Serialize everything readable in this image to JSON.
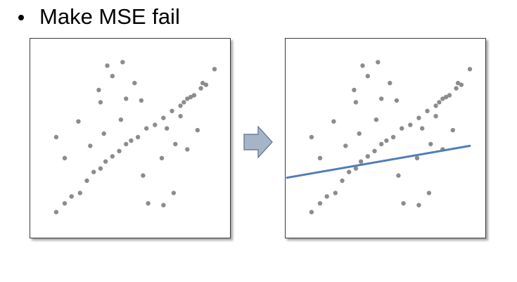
{
  "bullet": {
    "text": "Make MSE fail"
  },
  "colors": {
    "point": "#8c8c8c",
    "fit_line": "#4f7db8",
    "arrow_fill": "#a6b4c8",
    "arrow_stroke": "#5a6f8c",
    "frame": "#3a3a3a"
  },
  "icons": {
    "transition": "right-arrow-icon"
  },
  "chart_data": [
    {
      "type": "scatter",
      "title": "",
      "xlabel": "",
      "ylabel": "",
      "xlim": [
        0,
        100
      ],
      "ylim": [
        0,
        100
      ],
      "grid": false,
      "points": [
        [
          7,
          7
        ],
        [
          12,
          12
        ],
        [
          16,
          16
        ],
        [
          21,
          18
        ],
        [
          25,
          25
        ],
        [
          29,
          30
        ],
        [
          33,
          32
        ],
        [
          36,
          36
        ],
        [
          40,
          39
        ],
        [
          44,
          42
        ],
        [
          48,
          46
        ],
        [
          51,
          48
        ],
        [
          55,
          50
        ],
        [
          60,
          55
        ],
        [
          65,
          57
        ],
        [
          70,
          61
        ],
        [
          75,
          65
        ],
        [
          80,
          68
        ],
        [
          84,
          72
        ],
        [
          88,
          74
        ],
        [
          92,
          78
        ],
        [
          95,
          80
        ],
        [
          100,
          89
        ],
        [
          93,
          81
        ],
        [
          86,
          73
        ],
        [
          82,
          70
        ],
        [
          7,
          50
        ],
        [
          12,
          38
        ],
        [
          20,
          59
        ],
        [
          27,
          45
        ],
        [
          32,
          77
        ],
        [
          33,
          70
        ],
        [
          35,
          52
        ],
        [
          37,
          91
        ],
        [
          40,
          85
        ],
        [
          45,
          60
        ],
        [
          46,
          93
        ],
        [
          48,
          72
        ],
        [
          53,
          81
        ],
        [
          57,
          71
        ],
        [
          58,
          28
        ],
        [
          61,
          12
        ],
        [
          69,
          38
        ],
        [
          70,
          11
        ],
        [
          72,
          55
        ],
        [
          76,
          18
        ],
        [
          77,
          46
        ],
        [
          80,
          62
        ],
        [
          84,
          43
        ],
        [
          90,
          54
        ]
      ]
    },
    {
      "type": "scatter",
      "title": "",
      "xlabel": "",
      "ylabel": "",
      "xlim": [
        0,
        100
      ],
      "ylim": [
        0,
        100
      ],
      "grid": false,
      "points": [
        [
          7,
          7
        ],
        [
          12,
          12
        ],
        [
          16,
          16
        ],
        [
          21,
          18
        ],
        [
          25,
          25
        ],
        [
          29,
          30
        ],
        [
          33,
          32
        ],
        [
          36,
          36
        ],
        [
          40,
          39
        ],
        [
          44,
          42
        ],
        [
          48,
          46
        ],
        [
          51,
          48
        ],
        [
          55,
          50
        ],
        [
          60,
          55
        ],
        [
          65,
          57
        ],
        [
          70,
          61
        ],
        [
          75,
          65
        ],
        [
          80,
          68
        ],
        [
          84,
          72
        ],
        [
          88,
          74
        ],
        [
          92,
          78
        ],
        [
          95,
          80
        ],
        [
          100,
          89
        ],
        [
          93,
          81
        ],
        [
          86,
          73
        ],
        [
          82,
          70
        ],
        [
          7,
          50
        ],
        [
          12,
          38
        ],
        [
          20,
          59
        ],
        [
          27,
          45
        ],
        [
          32,
          77
        ],
        [
          33,
          70
        ],
        [
          35,
          52
        ],
        [
          37,
          91
        ],
        [
          40,
          85
        ],
        [
          45,
          60
        ],
        [
          46,
          93
        ],
        [
          48,
          72
        ],
        [
          53,
          81
        ],
        [
          57,
          71
        ],
        [
          58,
          28
        ],
        [
          61,
          12
        ],
        [
          69,
          38
        ],
        [
          70,
          11
        ],
        [
          72,
          55
        ],
        [
          76,
          18
        ],
        [
          77,
          46
        ],
        [
          80,
          62
        ],
        [
          84,
          43
        ],
        [
          90,
          54
        ]
      ],
      "fit_line": {
        "x": [
          0,
          100
        ],
        "y": [
          28,
          45
        ]
      }
    }
  ]
}
